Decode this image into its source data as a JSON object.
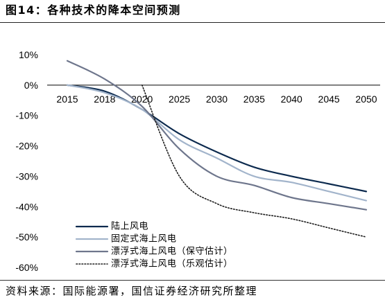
{
  "chart_data": {
    "type": "line",
    "title": "图14：各种技术的降本空间预测",
    "categories": [
      "2015",
      "2018",
      "2020",
      "2025",
      "2030",
      "2035",
      "2040",
      "2045",
      "2050"
    ],
    "y_tick_labels": [
      "10%",
      "0%",
      "-10%",
      "-20%",
      "-30%",
      "-40%",
      "-50%",
      "-60%"
    ],
    "ylim": [
      -60,
      10
    ],
    "grid": false,
    "legend_position": "bottom-left",
    "series": [
      {
        "name": "陆上风电",
        "color": "#0c2a4e",
        "line_style": "solid",
        "values": [
          0,
          -2,
          -8,
          -16,
          -22,
          -27,
          -30,
          -32.5,
          -35
        ]
      },
      {
        "name": "固定式海上风电",
        "color": "#a2b4cb",
        "line_style": "solid",
        "values": [
          0,
          -2.5,
          -8,
          -18,
          -24,
          -30,
          -32,
          -35,
          -38
        ]
      },
      {
        "name": "漂浮式海上风电（保守估计）",
        "color": "#6e768c",
        "line_style": "solid",
        "values": [
          8,
          2,
          -7,
          -21,
          -30,
          -33,
          -37,
          -39,
          -41
        ]
      },
      {
        "name": "漂浮式海上风电（乐观估计）",
        "color": "#1c1c1c",
        "line_style": "dotted",
        "values": [
          null,
          null,
          0,
          -30,
          -39,
          -42,
          -44,
          -47,
          -50
        ]
      }
    ]
  },
  "footer": {
    "source": "资料来源：国际能源署，国信证券经济研究所整理"
  }
}
